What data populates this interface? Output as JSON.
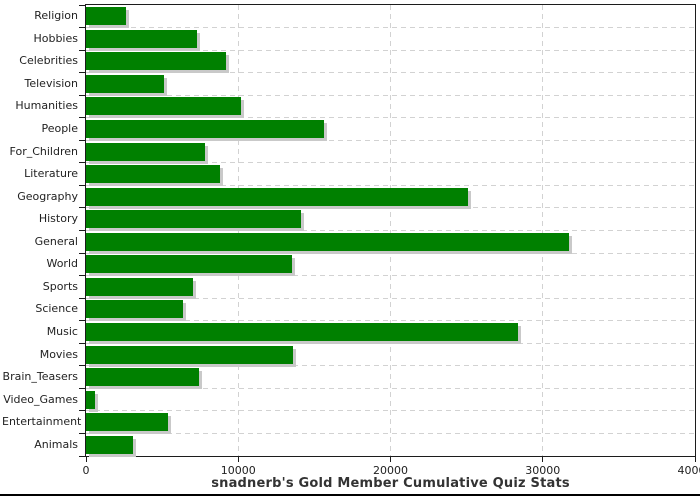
{
  "title": "snadnerb's Gold Member Cumulative Quiz Stats",
  "colors": {
    "bar": "#008000",
    "bar_shadow": "#c9c9c9",
    "grid": "#d2d2d2",
    "axis": "#1c1c1c",
    "text": "#222222",
    "title_text": "#333333",
    "bottom_rule": "#000000",
    "background": "#ffffff"
  },
  "chart_data": {
    "type": "bar",
    "orientation": "horizontal",
    "title": "snadnerb's Gold Member Cumulative Quiz Stats",
    "xlabel": "",
    "ylabel": "",
    "categories": [
      "Religion",
      "Hobbies",
      "Celebrities",
      "Television",
      "Humanities",
      "People",
      "For_Children",
      "Literature",
      "Geography",
      "History",
      "General",
      "World",
      "Sports",
      "Science",
      "Music",
      "Movies",
      "Brain_Teasers",
      "Video_Games",
      "Entertainment",
      "Animals"
    ],
    "values": [
      2600,
      7300,
      9200,
      5100,
      10200,
      15600,
      7800,
      8800,
      25100,
      14100,
      31700,
      13500,
      7000,
      6400,
      28400,
      13600,
      7400,
      600,
      5400,
      3100
    ],
    "xlim": [
      0,
      40000
    ],
    "xticks": [
      0,
      10000,
      20000,
      30000,
      40000
    ],
    "grid": true,
    "legend": false,
    "bar_color": "#008000"
  }
}
